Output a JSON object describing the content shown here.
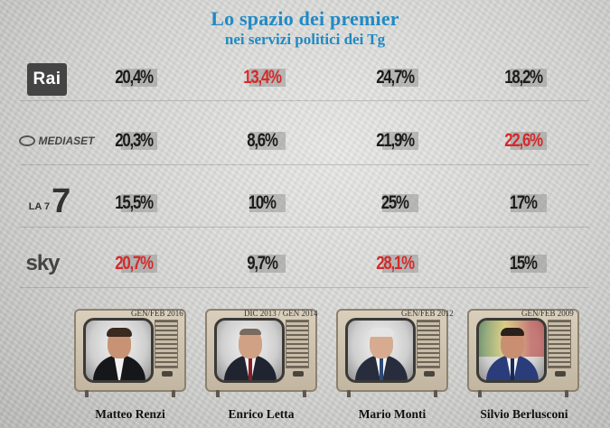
{
  "title": "Lo spazio dei premier",
  "subtitle": "nei servizi politici dei Tg",
  "networks": [
    {
      "name": "Rai",
      "values": [
        "20,4%",
        "13,4%",
        "24,7%",
        "18,2%"
      ],
      "highlight": [
        false,
        true,
        false,
        false
      ]
    },
    {
      "name": "MEDIASET",
      "values": [
        "20,3%",
        "8,6%",
        "21,9%",
        "22,6%"
      ],
      "highlight": [
        false,
        false,
        false,
        true
      ]
    },
    {
      "name": "LA 7",
      "values": [
        "15,5%",
        "10%",
        "25%",
        "17%"
      ],
      "highlight": [
        false,
        false,
        false,
        false
      ]
    },
    {
      "name": "sky",
      "values": [
        "20,7%",
        "9,7%",
        "28,1%",
        "15%"
      ],
      "highlight": [
        true,
        false,
        true,
        false
      ]
    }
  ],
  "premiers": [
    {
      "name": "Matteo Renzi",
      "period": "GEN/FEB 2016"
    },
    {
      "name": "Enrico Letta",
      "period": "DIC 2013 / GEN 2014"
    },
    {
      "name": "Mario Monti",
      "period": "GEN/FEB 2012"
    },
    {
      "name": "Silvio Berlusconi",
      "period": "GEN/FEB 2009"
    }
  ],
  "colors": {
    "title": "#1f8ac4",
    "highlight": "#d42a2a",
    "text": "#1c1c1c"
  }
}
